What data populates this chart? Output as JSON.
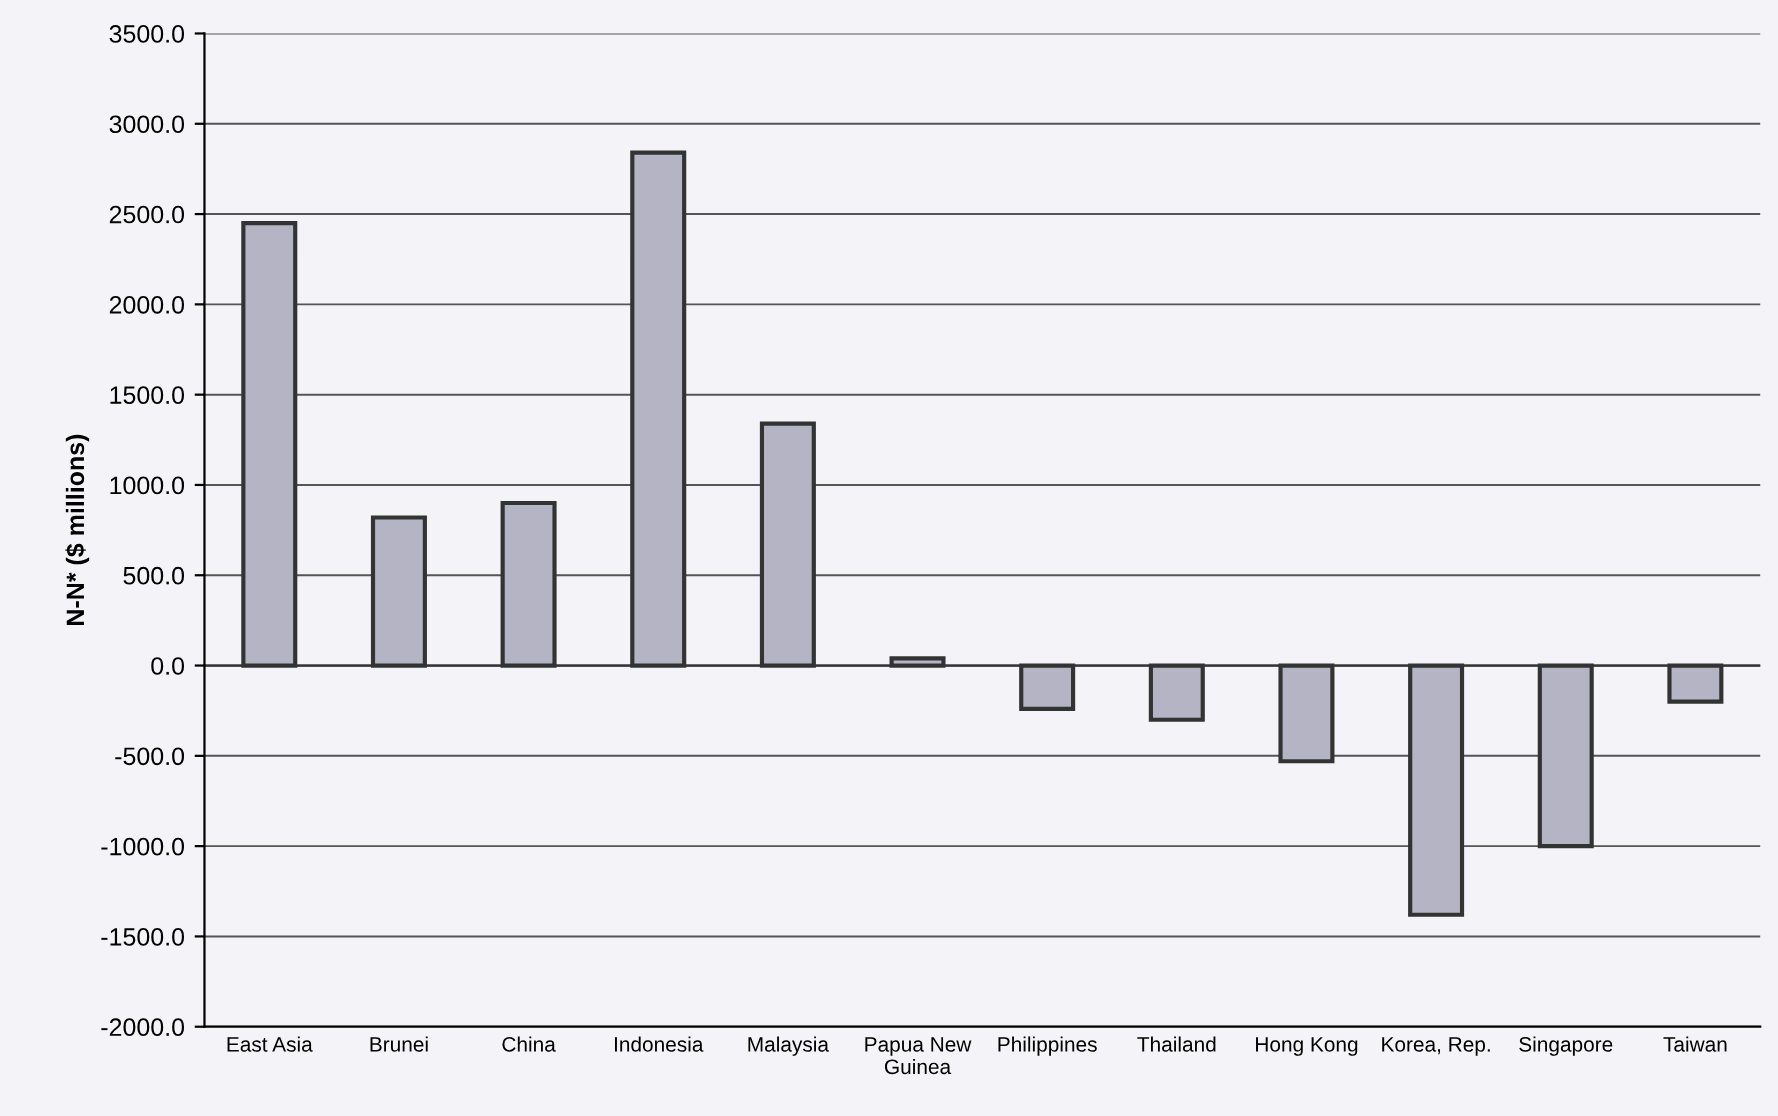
{
  "chart_data": {
    "type": "bar",
    "ylabel": "N-N* ($ millions)",
    "categories": [
      "East Asia",
      "Brunei",
      "China",
      "Indonesia",
      "Malaysia",
      "Papua New Guinea",
      "Philippines",
      "Thailand",
      "Hong Kong",
      "Korea, Rep.",
      "Singapore",
      "Taiwan"
    ],
    "values": [
      2450,
      820,
      900,
      2840,
      1340,
      40,
      -240,
      -300,
      -530,
      -1380,
      -1000,
      -200
    ],
    "color": "#b4b4c4",
    "ylim": [
      -2000,
      3500
    ],
    "yticks": [
      {
        "value": -2000,
        "label": "-2000.0"
      },
      {
        "value": -1500,
        "label": "-1500.0"
      },
      {
        "value": -1000,
        "label": "-1000.0"
      },
      {
        "value": -500,
        "label": "-500.0"
      },
      {
        "value": 0,
        "label": "0.0"
      },
      {
        "value": 500,
        "label": "500.0"
      },
      {
        "value": 1000,
        "label": "1000.0"
      },
      {
        "value": 1500,
        "label": "1500.0"
      },
      {
        "value": 2000,
        "label": "2000.0"
      },
      {
        "value": 2500,
        "label": "2500.0"
      },
      {
        "value": 3000,
        "label": "3000.0"
      },
      {
        "value": 3500,
        "label": "3500.0"
      }
    ],
    "grid": "y"
  }
}
